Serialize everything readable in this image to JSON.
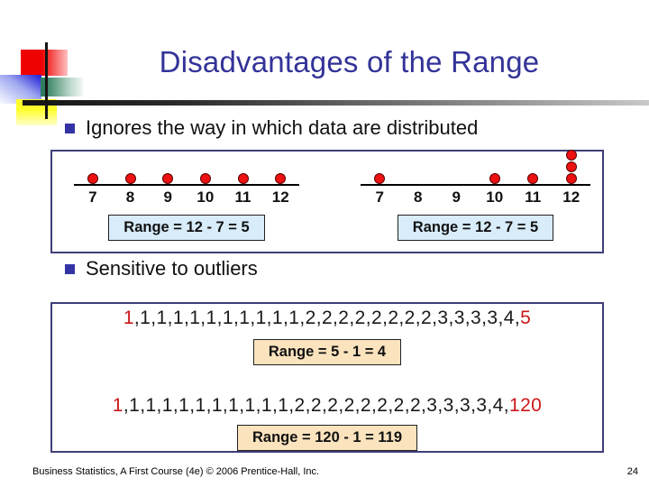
{
  "slide": {
    "title": "Disadvantages of the Range",
    "footer": "Business Statistics, A First Course (4e) © 2006 Prentice-Hall, Inc.",
    "page_number": "24"
  },
  "bullets": [
    "Ignores the way in which data are distributed",
    "Sensitive to outliers"
  ],
  "chart_data": [
    {
      "type": "dotplot",
      "x": [
        "7",
        "8",
        "9",
        "10",
        "11",
        "12"
      ],
      "counts": [
        1,
        1,
        1,
        1,
        1,
        1
      ],
      "points": [
        7,
        8,
        9,
        10,
        11,
        12
      ],
      "annotation": "Range = 12 - 7 = 5"
    },
    {
      "type": "dotplot",
      "x": [
        "7",
        "8",
        "9",
        "10",
        "11",
        "12"
      ],
      "counts": [
        1,
        0,
        0,
        1,
        1,
        3
      ],
      "points": [
        7,
        10,
        11,
        12,
        12,
        12
      ],
      "annotation": "Range = 12 - 7 = 5"
    }
  ],
  "outlier_examples": [
    {
      "values": [
        "1",
        "1",
        "1",
        "1",
        "1",
        "1",
        "1",
        "1",
        "1",
        "1",
        "1",
        "2",
        "2",
        "2",
        "2",
        "2",
        "2",
        "2",
        "2",
        "3",
        "3",
        "3",
        "3",
        "4",
        "5"
      ],
      "red_indices": [
        0,
        24
      ],
      "range_label": "Range = 5 - 1 = 4"
    },
    {
      "values": [
        "1",
        "1",
        "1",
        "1",
        "1",
        "1",
        "1",
        "1",
        "1",
        "1",
        "1",
        "2",
        "2",
        "2",
        "2",
        "2",
        "2",
        "2",
        "2",
        "3",
        "3",
        "3",
        "3",
        "4",
        "120"
      ],
      "red_indices": [
        0,
        24
      ],
      "range_label": "Range = 120 - 1 = 119"
    }
  ],
  "colors": {
    "title_text": "#333399",
    "panel_border": "#3f3f7a",
    "dot_fill": "#ee1111",
    "dot_outline": "#5a0000",
    "highlight_red": "#cc1719",
    "range_box_blue": "#d8ecfa",
    "range_box_peach": "#fbe3be",
    "bullet_square": "#3333a6"
  }
}
